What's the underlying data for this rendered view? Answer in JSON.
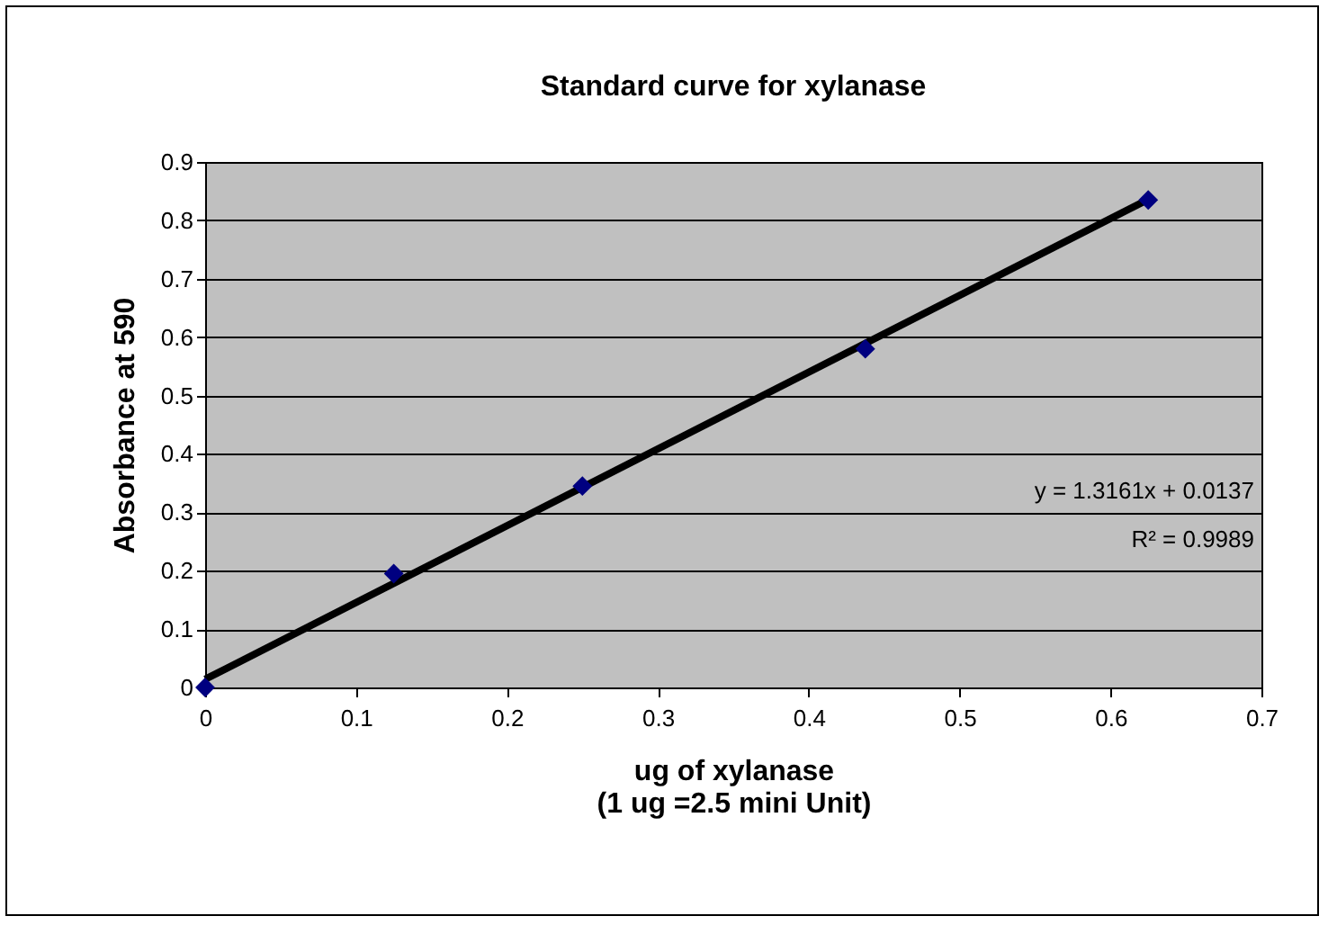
{
  "chart_data": {
    "type": "scatter",
    "title": "Standard curve for xylanase",
    "xlabel": "ug of xylanase\n(1 ug =2.5  mini Unit)",
    "ylabel": "Absorbance at 590",
    "x": [
      0,
      0.125,
      0.25,
      0.4375,
      0.625
    ],
    "series": [
      {
        "color": "#000080",
        "values": [
          0,
          0.195,
          0.345,
          0.58,
          0.835
        ],
        "marker": "diamond"
      },
      {
        "type": "line",
        "color": "#000000",
        "x": [
          0,
          0.625
        ],
        "values": [
          0.014,
          0.836
        ]
      }
    ],
    "xlim": [
      0,
      0.7
    ],
    "xticks": [
      0,
      0.1,
      0.2,
      0.3,
      0.4,
      0.5,
      0.6,
      0.7
    ],
    "ylim": [
      0,
      0.9
    ],
    "yticks": [
      0,
      0.1,
      0.2,
      0.3,
      0.4,
      0.5,
      0.6,
      0.7,
      0.8,
      0.9
    ],
    "grid": "y",
    "annotations": [
      "y = 1.3161x + 0.0137",
      "R² = 0.9989"
    ]
  }
}
